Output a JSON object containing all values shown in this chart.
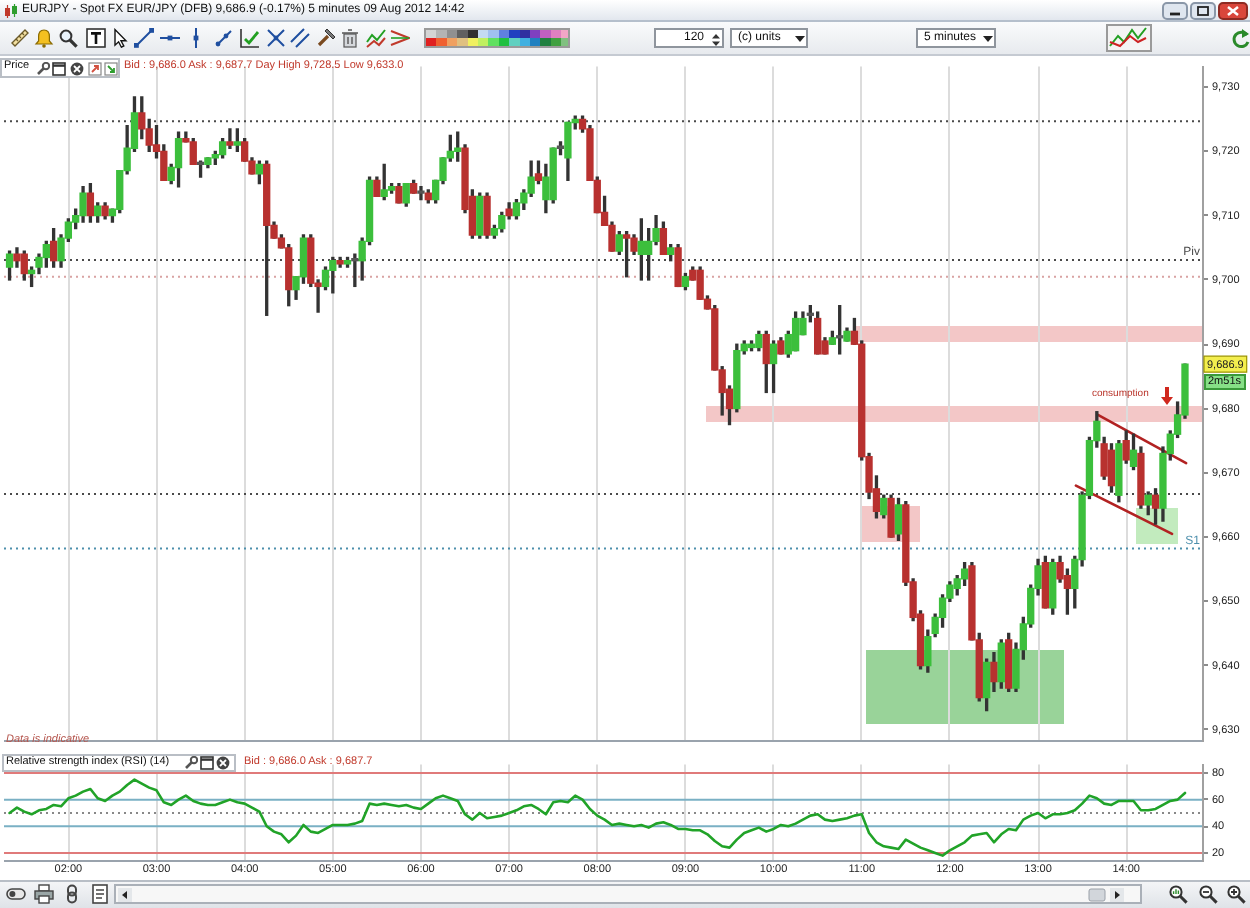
{
  "chart_data": [
    {
      "type": "candlestick",
      "title": "EURJPY - Spot FX EUR/JPY (DFB) 9,686.9 (-0.17%) 5 minutes 09 Aug 2012 14:42",
      "subtitle": "Price",
      "annotations": [
        "Bid : 9,686.0 Ask : 9,687.7 Day High 9,728.5 Low 9,633.0",
        "Data is indicative",
        "consumption",
        {
          "text": "9,686.9",
          "y": 9686.9
        },
        "2m51s",
        "120",
        "(c) units",
        "5 minutes"
      ],
      "x": [
        1.333,
        1.417,
        1.5,
        1.583,
        1.667,
        1.75,
        1.833,
        1.917,
        2,
        2.083,
        2.167,
        2.25,
        2.333,
        2.417,
        2.5,
        2.583,
        2.667,
        2.75,
        2.833,
        2.917,
        3,
        3.083,
        3.167,
        3.25,
        3.333,
        3.417,
        3.5,
        3.583,
        3.667,
        3.75,
        3.833,
        3.917,
        4,
        4.083,
        4.167,
        4.25,
        4.333,
        4.417,
        4.5,
        4.583,
        4.667,
        4.75,
        4.833,
        4.917,
        5,
        5.083,
        5.167,
        5.25,
        5.333,
        5.417,
        5.5,
        5.583,
        5.667,
        5.75,
        5.833,
        5.917,
        6,
        6.083,
        6.167,
        6.25,
        6.333,
        6.417,
        6.5,
        6.583,
        6.667,
        6.75,
        6.833,
        6.917,
        7,
        7.083,
        7.167,
        7.25,
        7.333,
        7.417,
        7.5,
        7.583,
        7.667,
        7.75,
        7.833,
        7.917,
        8,
        8.083,
        8.167,
        8.25,
        8.333,
        8.417,
        8.5,
        8.583,
        8.667,
        8.75,
        8.833,
        8.917,
        9,
        9.083,
        9.167,
        9.25,
        9.333,
        9.417,
        9.5,
        9.583,
        9.667,
        9.75,
        9.833,
        9.917,
        10,
        10.083,
        10.167,
        10.25,
        10.333,
        10.417,
        10.5,
        10.583,
        10.667,
        10.75,
        10.833,
        10.917,
        11,
        11.083,
        11.167,
        11.25,
        11.333,
        11.417,
        11.5,
        11.583,
        11.667,
        11.75,
        11.833,
        11.917,
        12,
        12.083,
        12.167,
        12.25,
        12.333,
        12.417,
        12.5,
        12.583,
        12.667,
        12.75,
        12.833,
        12.917,
        13,
        13.083,
        13.167,
        13.25,
        13.333,
        13.417,
        13.5,
        13.583,
        13.667,
        13.75,
        13.833,
        13.917,
        14,
        14.083,
        14.167,
        14.25,
        14.333,
        14.417,
        14.5,
        14.583,
        14.667
      ],
      "ohlc": [
        [
          9702,
          9704.5,
          9700,
          9704
        ],
        [
          9704,
          9705,
          9702,
          9703
        ],
        [
          9704,
          9704.5,
          9700,
          9701
        ],
        [
          9701,
          9702,
          9699,
          9701.5
        ],
        [
          9702,
          9704,
          9701,
          9703.5
        ],
        [
          9703.5,
          9706,
          9702,
          9705.5
        ],
        [
          9706,
          9708,
          9702,
          9703
        ],
        [
          9703,
          9707,
          9702,
          9706.5
        ],
        [
          9706.5,
          9709.5,
          9706,
          9709
        ],
        [
          9709,
          9711,
          9708,
          9710
        ],
        [
          9710,
          9714.5,
          9709,
          9713.5
        ],
        [
          9713.5,
          9715,
          9709,
          9710
        ],
        [
          9710,
          9712,
          9709,
          9711.5
        ],
        [
          9711.5,
          9712,
          9709.5,
          9710
        ],
        [
          9710,
          9711,
          9709,
          9711
        ],
        [
          9711,
          9717,
          9710.5,
          9717
        ],
        [
          9717,
          9724,
          9716.5,
          9720.5
        ],
        [
          9720.5,
          9728.5,
          9720,
          9726
        ],
        [
          9726,
          9728.5,
          9722,
          9723.5
        ],
        [
          9723.5,
          9725,
          9720,
          9721
        ],
        [
          9721,
          9724,
          9719,
          9720
        ],
        [
          9720,
          9721,
          9715.5,
          9715.5
        ],
        [
          9715.5,
          9718,
          9715,
          9717.5
        ],
        [
          9717.5,
          9723,
          9714.5,
          9722
        ],
        [
          9722,
          9723,
          9721.5,
          9721.5
        ],
        [
          9721.5,
          9722,
          9718,
          9718
        ],
        [
          9718,
          9718.5,
          9716,
          9718
        ],
        [
          9718,
          9719,
          9717.5,
          9719
        ],
        [
          9719,
          9720,
          9718,
          9719.5
        ],
        [
          9719.5,
          9722,
          9719,
          9721.5
        ],
        [
          9721.5,
          9723.5,
          9720.5,
          9721
        ],
        [
          9721,
          9723.5,
          9720,
          9721.5
        ],
        [
          9721.5,
          9722,
          9718.5,
          9718.5
        ],
        [
          9718.5,
          9719,
          9716.5,
          9716.5
        ],
        [
          9716.5,
          9718.5,
          9715,
          9718
        ],
        [
          9718,
          9718.5,
          9694.5,
          9708.5
        ],
        [
          9708.5,
          9709,
          9706.5,
          9706.5
        ],
        [
          9706.5,
          9707,
          9705,
          9705
        ],
        [
          9705,
          9705.5,
          9696,
          9698.5
        ],
        [
          9698.5,
          9700.5,
          9697,
          9700.5
        ],
        [
          9700.5,
          9707,
          9699.5,
          9706.5
        ],
        [
          9706.5,
          9707,
          9699,
          9699.5
        ],
        [
          9699.5,
          9700,
          9695,
          9699
        ],
        [
          9699,
          9702,
          9698.5,
          9701.5
        ],
        [
          9701.5,
          9703.5,
          9698,
          9703
        ],
        [
          9703,
          9703.5,
          9702,
          9702.5
        ],
        [
          9702.5,
          9703.5,
          9702,
          9703
        ],
        [
          9703,
          9704,
          9699,
          9703
        ],
        [
          9703,
          9706.5,
          9700,
          9706
        ],
        [
          9706,
          9716,
          9705.5,
          9715.5
        ],
        [
          9715.5,
          9716,
          9713,
          9713
        ],
        [
          9713,
          9718,
          9712.5,
          9714
        ],
        [
          9714,
          9715,
          9713.5,
          9714.5
        ],
        [
          9714.5,
          9715,
          9712,
          9712
        ],
        [
          9712,
          9715,
          9711.5,
          9715
        ],
        [
          9715,
          9715.5,
          9713.5,
          9713.5
        ],
        [
          9713.5,
          9714.5,
          9712.5,
          9713.5
        ],
        [
          9713.5,
          9714,
          9712,
          9712.5
        ],
        [
          9712.5,
          9715.5,
          9712,
          9715.5
        ],
        [
          9715.5,
          9719,
          9715,
          9719
        ],
        [
          9719,
          9722.5,
          9718.5,
          9720
        ],
        [
          9720,
          9723,
          9718.5,
          9720.5
        ],
        [
          9720.5,
          9721,
          9710.5,
          9711
        ],
        [
          9713,
          9714,
          9706.5,
          9707
        ],
        [
          9707,
          9713.5,
          9706.5,
          9713
        ],
        [
          9713,
          9713.5,
          9706.5,
          9707
        ],
        [
          9707,
          9708.5,
          9706.5,
          9708
        ],
        [
          9708,
          9710.5,
          9707.5,
          9710
        ],
        [
          9711,
          9712,
          9709.5,
          9710
        ],
        [
          9710,
          9712.5,
          9709.5,
          9712
        ],
        [
          9712,
          9714,
          9711,
          9713.5
        ],
        [
          9713.5,
          9718.5,
          9713,
          9716
        ],
        [
          9716.5,
          9718.5,
          9715,
          9715.5
        ],
        [
          9712.5,
          9718,
          9710.5,
          9716
        ],
        [
          9712.5,
          9720.5,
          9712,
          9720.5
        ],
        [
          9720.5,
          9721.5,
          9719.5,
          9720.5
        ],
        [
          9719,
          9724.5,
          9715.5,
          9724.5
        ],
        [
          9724.5,
          9725.5,
          9723.5,
          9725
        ],
        [
          9725,
          9725.5,
          9723,
          9723.5
        ],
        [
          9723.5,
          9724,
          9715.5,
          9715.5
        ],
        [
          9715.5,
          9716,
          9710.5,
          9710.5
        ],
        [
          9710.5,
          9713,
          9708.5,
          9708.5
        ],
        [
          9708.5,
          9709,
          9704.5,
          9704.5
        ],
        [
          9704.5,
          9707.5,
          9704,
          9707
        ],
        [
          9707,
          9707.5,
          9700.5,
          9706.5
        ],
        [
          9706.5,
          9707,
          9704,
          9704.5
        ],
        [
          9704,
          9709.5,
          9700,
          9706
        ],
        [
          9704,
          9708,
          9700,
          9706
        ],
        [
          9706,
          9710,
          9705.5,
          9708
        ],
        [
          9708,
          9709,
          9704,
          9704
        ],
        [
          9704,
          9705.5,
          9703,
          9705
        ],
        [
          9705,
          9705.5,
          9699,
          9699
        ],
        [
          9699,
          9701,
          9698.5,
          9700.5
        ],
        [
          9701.5,
          9702,
          9700,
          9700
        ],
        [
          9701.5,
          9702,
          9697,
          9697
        ],
        [
          9697,
          9697.5,
          9695.5,
          9695.5
        ],
        [
          9695.5,
          9696,
          9686,
          9686
        ],
        [
          9686,
          9686.5,
          9679,
          9682.5
        ],
        [
          9683,
          9683.5,
          9677.5,
          9680
        ],
        [
          9680,
          9690,
          9679.5,
          9689
        ],
        [
          9689,
          9690.5,
          9688.5,
          9690
        ],
        [
          9689.5,
          9690.5,
          9689,
          9690
        ],
        [
          9689.5,
          9692,
          9689,
          9691.5
        ],
        [
          9691.5,
          9692,
          9682.5,
          9687
        ],
        [
          9687,
          9690.5,
          9682.5,
          9690
        ],
        [
          9690.5,
          9691,
          9688.5,
          9688.5
        ],
        [
          9688.5,
          9692,
          9688,
          9691.5
        ],
        [
          9689,
          9695,
          9689,
          9694
        ],
        [
          9691.5,
          9695,
          9691.5,
          9694
        ],
        [
          9694.5,
          9696,
          9693.5,
          9694.5
        ],
        [
          9694,
          9695,
          9688.5,
          9688.5
        ],
        [
          9690.5,
          9691,
          9688.5,
          9688.5
        ],
        [
          9690,
          9692,
          9690,
          9691
        ],
        [
          9691,
          9696,
          9688.5,
          9691
        ],
        [
          9690.5,
          9692.5,
          9690.5,
          9692
        ],
        [
          9692,
          9694,
          9690,
          9690
        ],
        [
          9690,
          9690.5,
          9672,
          9672.5
        ],
        [
          9672.5,
          9673,
          9666,
          9667
        ],
        [
          9667.5,
          9669.5,
          9663,
          9664
        ],
        [
          9663.5,
          9666.5,
          9663,
          9666
        ],
        [
          9666,
          9666.5,
          9660,
          9660
        ],
        [
          9660.5,
          9666,
          9659.5,
          9665
        ],
        [
          9665,
          9665.5,
          9652.5,
          9653
        ],
        [
          9653,
          9653.5,
          9647,
          9647.5
        ],
        [
          9648,
          9648.5,
          9639.5,
          9640
        ],
        [
          9640,
          9645.5,
          9639,
          9644.5
        ],
        [
          9645,
          9648,
          9644.5,
          9647.5
        ],
        [
          9647.5,
          9651,
          9646,
          9650.5
        ],
        [
          9650.5,
          9653,
          9650,
          9652.5
        ],
        [
          9652,
          9654,
          9651,
          9653.5
        ],
        [
          9653.5,
          9656,
          9652.5,
          9655
        ],
        [
          9655.5,
          9656,
          9644,
          9644
        ],
        [
          9644,
          9645,
          9634.5,
          9635
        ],
        [
          9635,
          9641,
          9633,
          9640.5
        ],
        [
          9640.5,
          9642,
          9636,
          9637.5
        ],
        [
          9637.5,
          9644,
          9636.5,
          9643.5
        ],
        [
          9644,
          9645,
          9636,
          9636.5
        ],
        [
          9636.5,
          9643.5,
          9636,
          9642.5
        ],
        [
          9642.5,
          9647.5,
          9641,
          9646.5
        ],
        [
          9646.5,
          9652.5,
          9646,
          9652
        ],
        [
          9652,
          9656.5,
          9651,
          9655.5
        ],
        [
          9656,
          9657,
          9649,
          9649
        ],
        [
          9649,
          9656.5,
          9648,
          9656
        ],
        [
          9656,
          9657,
          9653,
          9653.5
        ],
        [
          9654,
          9655,
          9648,
          9652
        ],
        [
          9652,
          9657,
          9649,
          9656.5
        ],
        [
          9656.5,
          9667,
          9655.5,
          9666.5
        ],
        [
          9666.5,
          9675.5,
          9666,
          9675
        ],
        [
          9675,
          9679.5,
          9674,
          9678
        ],
        [
          9674.5,
          9675.5,
          9669,
          9669.5
        ],
        [
          9673.5,
          9674.5,
          9667,
          9668
        ],
        [
          9666.5,
          9675,
          9665.5,
          9674.5
        ],
        [
          9675,
          9676.5,
          9671.5,
          9672
        ],
        [
          9671,
          9676,
          9670.5,
          9673.5
        ],
        [
          9673,
          9674,
          9664.5,
          9665
        ],
        [
          9665,
          9667,
          9663.5,
          9666.5
        ],
        [
          9666.5,
          9667.5,
          9662,
          9664.5
        ],
        [
          9664.5,
          9674,
          9662.5,
          9673
        ],
        [
          9673,
          9676.5,
          9672,
          9676
        ],
        [
          9676,
          9681,
          9675.5,
          9679
        ],
        [
          9679,
          9686.9,
          9678.5,
          9686.9
        ]
      ],
      "series": [
        {
          "type": "line",
          "color": "#b22222",
          "x": [
            13.68,
            14.68
          ],
          "values": [
            9679,
            9671.5
          ]
        },
        {
          "type": "line",
          "color": "#b22222",
          "x": [
            13.43,
            14.52
          ],
          "values": [
            9668,
            9660.5
          ]
        }
      ],
      "xlim": [
        1.27,
        14.86
      ],
      "xticks": [
        {
          "value": 2,
          "label": null
        },
        {
          "value": 3,
          "label": null
        },
        {
          "value": 4,
          "label": null
        },
        {
          "value": 5,
          "label": null
        },
        {
          "value": 6,
          "label": null
        },
        {
          "value": 7,
          "label": null
        },
        {
          "value": 8,
          "label": null
        },
        {
          "value": 9,
          "label": null
        },
        {
          "value": 10,
          "label": null
        },
        {
          "value": 11,
          "label": null
        },
        {
          "value": 12,
          "label": null
        },
        {
          "value": 13,
          "label": null
        },
        {
          "value": 14,
          "label": null
        }
      ],
      "ylim": [
        9628.2,
        9733.2
      ],
      "yticks": [
        {
          "value": 9630,
          "label": "9,630"
        },
        {
          "value": 9640,
          "label": "9,640"
        },
        {
          "value": 9650,
          "label": "9,650"
        },
        {
          "value": 9660,
          "label": "9,660"
        },
        {
          "value": 9670,
          "label": "9,670"
        },
        {
          "value": 9680,
          "label": "9,680"
        },
        {
          "value": 9690,
          "label": "9,690"
        },
        {
          "value": 9700,
          "label": "9,700"
        },
        {
          "value": 9710,
          "label": "9,710"
        },
        {
          "value": 9720,
          "label": "9,720"
        },
        {
          "value": 9730,
          "label": "9,730"
        }
      ],
      "tick_labels": "y",
      "grid": "x",
      "ref_lines": [
        {
          "axis": "y",
          "value": 9724.7,
          "color": "#4a4a4a",
          "line_style": "dotted"
        },
        {
          "axis": "y",
          "value": 9703.1,
          "label": "Piv",
          "color": "#4a4a4a",
          "line_style": "dotted"
        },
        {
          "axis": "y",
          "value": 9700.5,
          "color": "#d9a3a3",
          "line_style": "dotted"
        },
        {
          "axis": "y",
          "value": 9666.7,
          "color": "#4a4a4a",
          "line_style": "dotted"
        },
        {
          "axis": "y",
          "value": 9658.2,
          "label": "S1",
          "color": "#4d8fac",
          "line_style": "dotted"
        }
      ]
    },
    {
      "type": "line",
      "title": "Relative strength index (RSI) (14)",
      "annotations": [
        "Bid : 9,686.0 Ask : 9,687.7"
      ],
      "x": [
        1.333,
        1.417,
        1.5,
        1.583,
        1.667,
        1.75,
        1.833,
        1.917,
        2,
        2.083,
        2.167,
        2.25,
        2.333,
        2.417,
        2.5,
        2.583,
        2.667,
        2.75,
        2.833,
        2.917,
        3,
        3.083,
        3.167,
        3.25,
        3.333,
        3.417,
        3.5,
        3.583,
        3.667,
        3.75,
        3.833,
        3.917,
        4,
        4.083,
        4.167,
        4.25,
        4.333,
        4.417,
        4.5,
        4.583,
        4.667,
        4.75,
        4.833,
        4.917,
        5,
        5.083,
        5.167,
        5.25,
        5.333,
        5.417,
        5.5,
        5.583,
        5.667,
        5.75,
        5.833,
        5.917,
        6,
        6.083,
        6.167,
        6.25,
        6.333,
        6.417,
        6.5,
        6.583,
        6.667,
        6.75,
        6.833,
        6.917,
        7,
        7.083,
        7.167,
        7.25,
        7.333,
        7.417,
        7.5,
        7.583,
        7.667,
        7.75,
        7.833,
        7.917,
        8,
        8.083,
        8.167,
        8.25,
        8.333,
        8.417,
        8.5,
        8.583,
        8.667,
        8.75,
        8.833,
        8.917,
        9,
        9.083,
        9.167,
        9.25,
        9.333,
        9.417,
        9.5,
        9.583,
        9.667,
        9.75,
        9.833,
        9.917,
        10,
        10.083,
        10.167,
        10.25,
        10.333,
        10.417,
        10.5,
        10.583,
        10.667,
        10.75,
        10.833,
        10.917,
        11,
        11.083,
        11.167,
        11.25,
        11.333,
        11.417,
        11.5,
        11.583,
        11.667,
        11.75,
        11.833,
        11.917,
        12,
        12.083,
        12.167,
        12.25,
        12.333,
        12.417,
        12.5,
        12.583,
        12.667,
        12.75,
        12.833,
        12.917,
        13,
        13.083,
        13.167,
        13.25,
        13.333,
        13.417,
        13.5,
        13.583,
        13.667,
        13.75,
        13.833,
        13.917,
        14,
        14.083,
        14.167,
        14.25,
        14.333,
        14.417,
        14.5,
        14.583,
        14.667
      ],
      "series": [
        {
          "color": "#21a328",
          "values": [
            50,
            54,
            51,
            49,
            52,
            53,
            56,
            55,
            61,
            63,
            66,
            68,
            61,
            59,
            63,
            66,
            71,
            75,
            72,
            69,
            67,
            58,
            56,
            60,
            63,
            59,
            57,
            56,
            56,
            58,
            60,
            58,
            57,
            54,
            51,
            40,
            36,
            34,
            28,
            33,
            41,
            36,
            35,
            38,
            41,
            41,
            41,
            42,
            44,
            57,
            56,
            57,
            56,
            55,
            56,
            54,
            53,
            57,
            61,
            63,
            61,
            59,
            49,
            45,
            50,
            46,
            47,
            48,
            50,
            52,
            55,
            56,
            53,
            49,
            58,
            59,
            58,
            63,
            60,
            53,
            48,
            45,
            41,
            42,
            41,
            40,
            41,
            39,
            42,
            43,
            41,
            38,
            38,
            37,
            37,
            34,
            29,
            25,
            24,
            30,
            35,
            37,
            39,
            36,
            38,
            41,
            40,
            42,
            45,
            48,
            49,
            45,
            44,
            45,
            46,
            48,
            49,
            35,
            28,
            25,
            24,
            23,
            30,
            27,
            24,
            22,
            20,
            18,
            22,
            25,
            28,
            33,
            34,
            35,
            28,
            34,
            38,
            37,
            45,
            48,
            50,
            46,
            49,
            49,
            50,
            52,
            57,
            63,
            61,
            57,
            56,
            59,
            59,
            59,
            52,
            52,
            53,
            56,
            59,
            60,
            65
          ]
        }
      ],
      "xlim": [
        1.27,
        14.86
      ],
      "xticks": [
        {
          "value": 2,
          "label": "02:00"
        },
        {
          "value": 3,
          "label": "03:00"
        },
        {
          "value": 4,
          "label": "04:00"
        },
        {
          "value": 5,
          "label": "05:00"
        },
        {
          "value": 6,
          "label": "06:00"
        },
        {
          "value": 7,
          "label": "07:00"
        },
        {
          "value": 8,
          "label": "08:00"
        },
        {
          "value": 9,
          "label": "09:00"
        },
        {
          "value": 10,
          "label": "10:00"
        },
        {
          "value": 11,
          "label": "11:00"
        },
        {
          "value": 12,
          "label": "12:00"
        },
        {
          "value": 13,
          "label": "13:00"
        },
        {
          "value": 14,
          "label": "14:00"
        }
      ],
      "ylim": [
        14.7,
        86.3
      ],
      "yticks": [
        20,
        40,
        60,
        80
      ],
      "grid": "x",
      "ref_lines": [
        {
          "axis": "y",
          "value": 80,
          "color": "#e07a7a"
        },
        {
          "axis": "y",
          "value": 60,
          "color": "#7ab0c4"
        },
        {
          "axis": "y",
          "value": 50,
          "color": "#888888",
          "line_style": "dotted"
        },
        {
          "axis": "y",
          "value": 40,
          "color": "#7ab0c4"
        },
        {
          "axis": "y",
          "value": 20,
          "color": "#e07a7a"
        }
      ]
    }
  ]
}
